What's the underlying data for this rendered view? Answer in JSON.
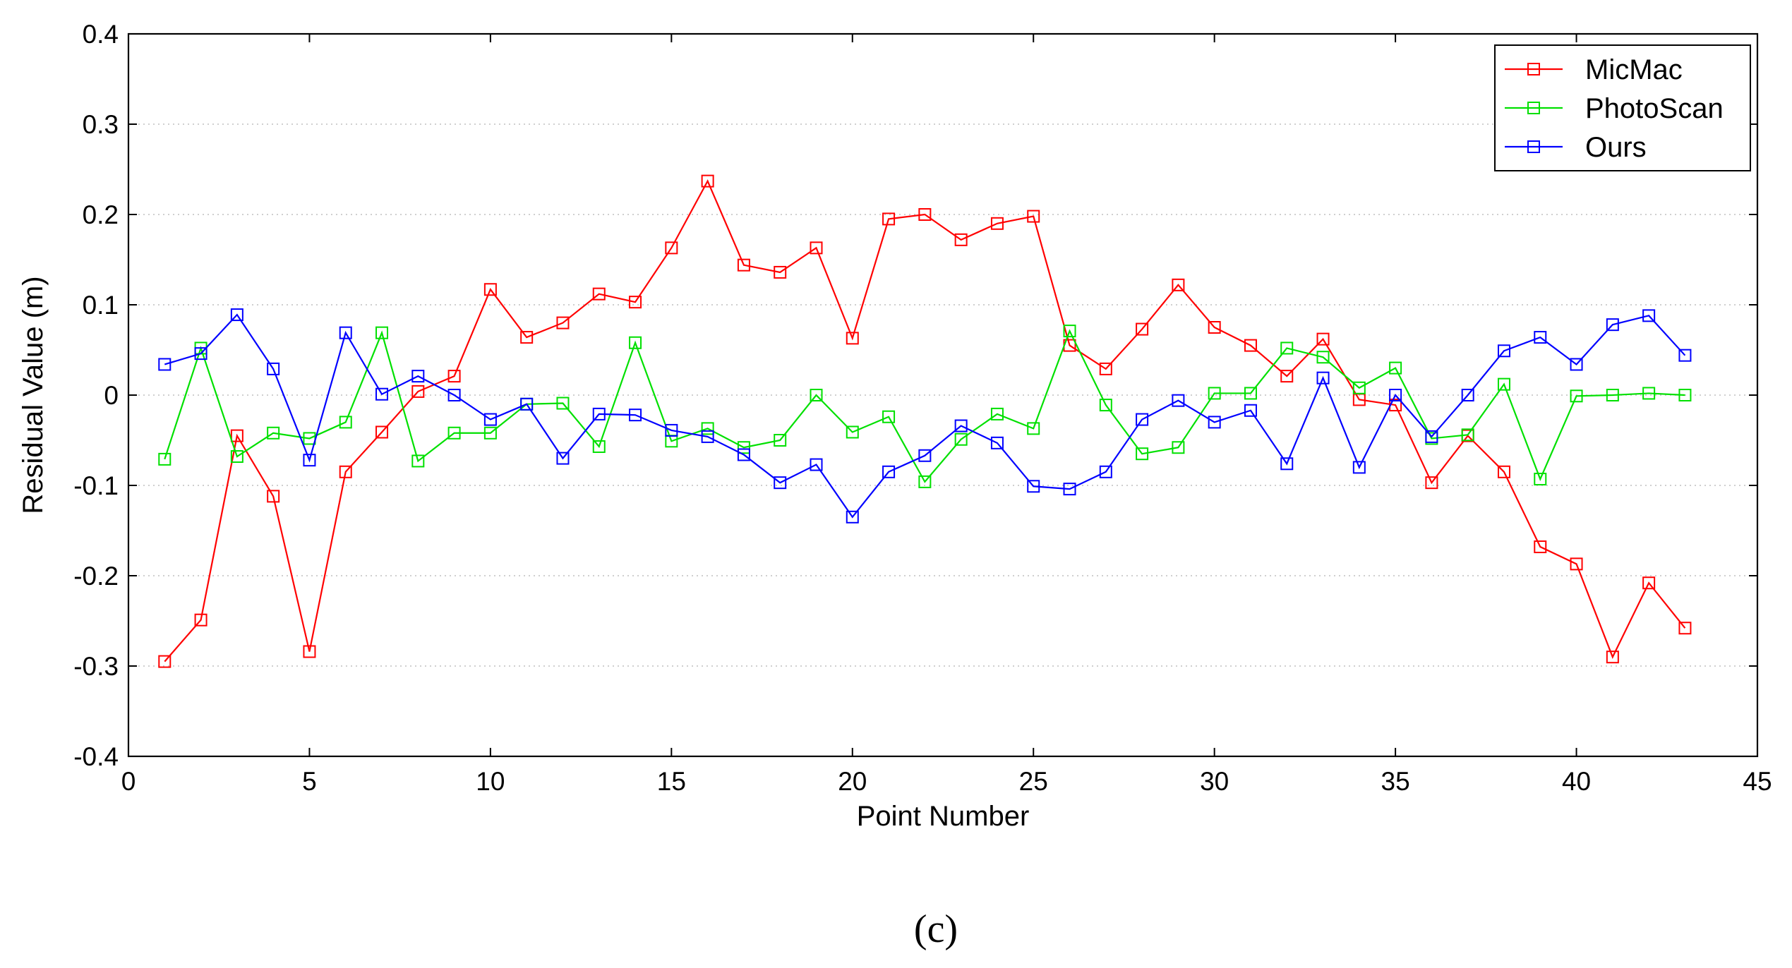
{
  "chart_data": {
    "type": "line",
    "title": "",
    "xlabel": "Point Number",
    "ylabel": "Residual Value (m)",
    "xlim": [
      0,
      45
    ],
    "ylim": [
      -0.4,
      0.4
    ],
    "xticks": [
      0,
      5,
      10,
      15,
      20,
      25,
      30,
      35,
      40,
      45
    ],
    "yticks": [
      -0.4,
      -0.3,
      -0.2,
      -0.1,
      0,
      0.1,
      0.2,
      0.3,
      0.4
    ],
    "xtick_labels": [
      "0",
      "5",
      "10",
      "15",
      "20",
      "25",
      "30",
      "35",
      "40",
      "45"
    ],
    "ytick_labels": [
      "-0.4",
      "-0.3",
      "-0.2",
      "-0.1",
      "0",
      "0.1",
      "0.2",
      "0.3",
      "0.4"
    ],
    "grid": "horizontal dotted",
    "legend_position": "top-right",
    "marker": "square",
    "x": [
      1,
      2,
      3,
      4,
      5,
      6,
      7,
      8,
      9,
      10,
      11,
      12,
      13,
      14,
      15,
      16,
      17,
      18,
      19,
      20,
      21,
      22,
      23,
      24,
      25,
      26,
      27,
      28,
      29,
      30,
      31,
      32,
      33,
      34,
      35,
      36,
      37,
      38,
      39,
      40,
      41,
      42,
      43
    ],
    "series": [
      {
        "name": "MicMac",
        "color": "#ff0000",
        "values": [
          -0.295,
          -0.249,
          -0.045,
          -0.112,
          -0.284,
          -0.085,
          -0.041,
          0.004,
          0.021,
          0.117,
          0.064,
          0.08,
          0.112,
          0.103,
          0.163,
          0.237,
          0.144,
          0.136,
          0.163,
          0.063,
          0.195,
          0.2,
          0.172,
          0.19,
          0.198,
          0.055,
          0.029,
          0.073,
          0.122,
          0.075,
          0.055,
          0.021,
          0.062,
          -0.005,
          -0.011,
          -0.097,
          -0.045,
          -0.085,
          -0.168,
          -0.187,
          -0.29,
          -0.208,
          -0.258
        ]
      },
      {
        "name": "PhotoScan",
        "color": "#00e000",
        "values": [
          -0.071,
          0.052,
          -0.068,
          -0.042,
          -0.048,
          -0.03,
          0.069,
          -0.073,
          -0.042,
          -0.042,
          -0.01,
          -0.009,
          -0.057,
          0.058,
          -0.051,
          -0.037,
          -0.058,
          -0.05,
          0.0,
          -0.041,
          -0.024,
          -0.096,
          -0.049,
          -0.021,
          -0.037,
          0.071,
          -0.011,
          -0.065,
          -0.058,
          0.002,
          0.002,
          0.052,
          0.042,
          0.008,
          0.03,
          -0.048,
          -0.044,
          0.012,
          -0.093,
          -0.001,
          0.0,
          0.002,
          0.0
        ]
      },
      {
        "name": "Ours",
        "color": "#0000ff",
        "values": [
          0.034,
          0.046,
          0.089,
          0.029,
          -0.072,
          0.069,
          0.001,
          0.021,
          0.0,
          -0.027,
          -0.01,
          -0.07,
          -0.021,
          -0.022,
          -0.039,
          -0.046,
          -0.066,
          -0.097,
          -0.077,
          -0.135,
          -0.085,
          -0.067,
          -0.034,
          -0.053,
          -0.101,
          -0.104,
          -0.085,
          -0.027,
          -0.006,
          -0.03,
          -0.017,
          -0.076,
          0.019,
          -0.08,
          0.0,
          -0.046,
          0.0,
          0.049,
          0.064,
          0.034,
          0.078,
          0.088,
          0.044
        ]
      }
    ]
  },
  "caption": "(c)"
}
